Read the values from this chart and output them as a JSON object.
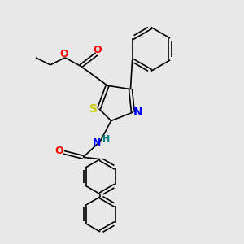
{
  "bg_color": "#e8e8e8",
  "bond_color": "#000000",
  "S_color": "#cccc00",
  "N_color": "#0000ff",
  "O_color": "#ff0000",
  "H_color": "#008080",
  "font_size": 8.0,
  "bond_width": 1.2,
  "figsize": [
    3.0,
    3.0
  ],
  "dpi": 100,
  "xlim": [
    0,
    10
  ],
  "ylim": [
    0,
    10
  ]
}
